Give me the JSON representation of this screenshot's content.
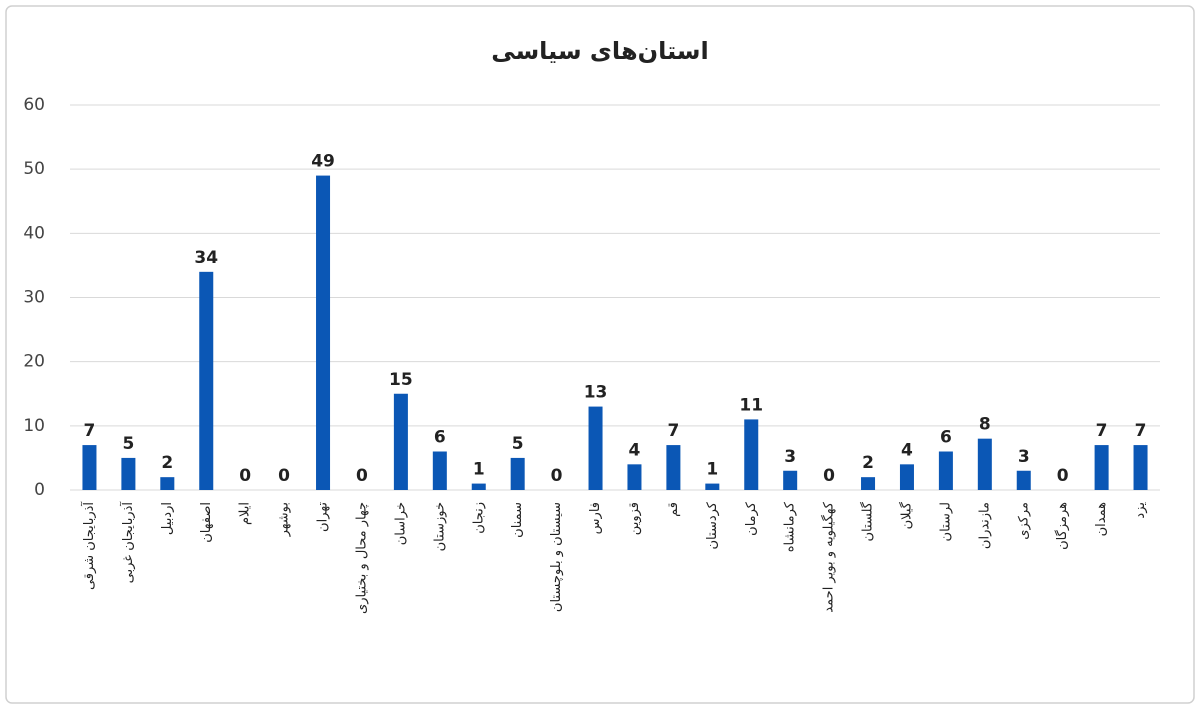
{
  "chart_data": {
    "type": "bar",
    "title": "استان‌های سیاسی",
    "categories": [
      "آذربایجان شرقی",
      "آذربایجان غربی",
      "اردبیل",
      "اصفهان",
      "ایلام",
      "بوشهر",
      "تهران",
      "چهار محال و بختیاری",
      "خراسان",
      "خوزستان",
      "زنجان",
      "سمنان",
      "سیستان و بلوچستان",
      "فارس",
      "قزوین",
      "قم",
      "کردستان",
      "کرمان",
      "کرمانشاه",
      "کهگیلویه و بویر احمد",
      "گلستان",
      "گیلان",
      "لرستان",
      "مازندران",
      "مرکزی",
      "هرمزگان",
      "همدان",
      "یزد"
    ],
    "values": [
      7,
      5,
      2,
      34,
      0,
      0,
      49,
      0,
      15,
      6,
      1,
      5,
      0,
      13,
      4,
      7,
      1,
      11,
      3,
      0,
      2,
      4,
      6,
      8,
      3,
      0,
      7,
      7
    ],
    "color": "#0b57b5",
    "ylim": [
      0,
      60
    ],
    "yticks": [
      0,
      10,
      20,
      30,
      40,
      50,
      60
    ],
    "grid": true
  }
}
